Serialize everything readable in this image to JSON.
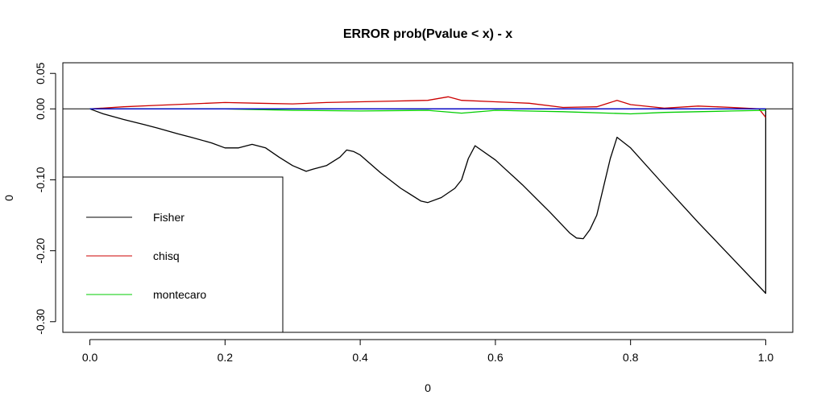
{
  "chart_data": {
    "type": "line",
    "title": "ERROR prob(Pvalue < x) - x",
    "xlabel": "0",
    "ylabel": "0",
    "xlim": [
      -0.04,
      1.04
    ],
    "ylim": [
      -0.315,
      0.065
    ],
    "x_ticks": [
      0,
      0.2,
      0.4,
      0.6,
      0.8,
      1
    ],
    "x_tick_labels": [
      "0.0",
      "0.2",
      "0.4",
      "0.6",
      "0.8",
      "1.0"
    ],
    "y_ticks": [
      -0.3,
      -0.2,
      -0.1,
      0,
      0.05
    ],
    "y_tick_labels": [
      "-0.30",
      "-0.20",
      "-0.10",
      "0.00",
      "0.05"
    ],
    "reference_line_y": 0,
    "legend": {
      "position": "bottom-left",
      "entries": [
        {
          "label": "Fisher",
          "color": "#000000"
        },
        {
          "label": "chisq",
          "color": "#cc0000"
        },
        {
          "label": "montecaro",
          "color": "#00cc00"
        }
      ]
    },
    "series": [
      {
        "name": "Fisher",
        "color": "#000000",
        "x": [
          0,
          0.02,
          0.05,
          0.08,
          0.1,
          0.13,
          0.15,
          0.18,
          0.2,
          0.22,
          0.24,
          0.26,
          0.28,
          0.3,
          0.32,
          0.33,
          0.35,
          0.37,
          0.38,
          0.39,
          0.4,
          0.43,
          0.46,
          0.49,
          0.5,
          0.52,
          0.54,
          0.55,
          0.56,
          0.57,
          0.6,
          0.64,
          0.68,
          0.71,
          0.72,
          0.73,
          0.74,
          0.75,
          0.76,
          0.77,
          0.78,
          0.8,
          0.85,
          0.9,
          0.95,
          1.0,
          1.0
        ],
        "y": [
          0,
          -0.007,
          -0.015,
          -0.022,
          -0.027,
          -0.035,
          -0.04,
          -0.048,
          -0.055,
          -0.055,
          -0.05,
          -0.055,
          -0.068,
          -0.08,
          -0.088,
          -0.085,
          -0.08,
          -0.068,
          -0.058,
          -0.06,
          -0.065,
          -0.09,
          -0.112,
          -0.13,
          -0.132,
          -0.125,
          -0.112,
          -0.1,
          -0.07,
          -0.052,
          -0.072,
          -0.107,
          -0.145,
          -0.175,
          -0.182,
          -0.183,
          -0.17,
          -0.15,
          -0.11,
          -0.07,
          -0.04,
          -0.055,
          -0.108,
          -0.16,
          -0.21,
          -0.26,
          0
        ]
      },
      {
        "name": "chisq",
        "color": "#cc0000",
        "x": [
          0,
          0.05,
          0.1,
          0.15,
          0.2,
          0.25,
          0.3,
          0.35,
          0.4,
          0.45,
          0.5,
          0.53,
          0.55,
          0.6,
          0.65,
          0.7,
          0.75,
          0.78,
          0.8,
          0.85,
          0.9,
          0.95,
          0.99,
          1.0
        ],
        "y": [
          0,
          0.003,
          0.005,
          0.007,
          0.009,
          0.008,
          0.007,
          0.009,
          0.01,
          0.011,
          0.012,
          0.017,
          0.012,
          0.01,
          0.008,
          0.002,
          0.003,
          0.012,
          0.006,
          0.001,
          0.004,
          0.002,
          0,
          -0.012
        ]
      },
      {
        "name": "montecaro",
        "color": "#00cc00",
        "x": [
          0,
          0.1,
          0.2,
          0.3,
          0.4,
          0.5,
          0.55,
          0.6,
          0.7,
          0.8,
          0.85,
          0.9,
          0.95,
          1.0
        ],
        "y": [
          0,
          0,
          0,
          -0.002,
          -0.003,
          -0.002,
          -0.006,
          -0.002,
          -0.004,
          -0.007,
          -0.005,
          -0.004,
          -0.003,
          -0.002
        ]
      },
      {
        "name": "",
        "color": "#0000cc",
        "x": [
          0,
          0.25,
          0.5,
          0.75,
          1.0
        ],
        "y": [
          0,
          0,
          0,
          0,
          0
        ]
      }
    ]
  }
}
